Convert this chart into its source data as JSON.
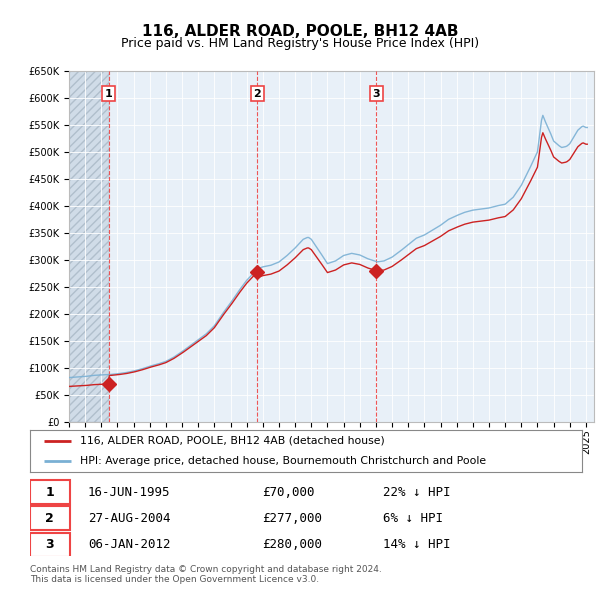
{
  "title": "116, ALDER ROAD, POOLE, BH12 4AB",
  "subtitle": "Price paid vs. HM Land Registry's House Price Index (HPI)",
  "legend_line1": "116, ALDER ROAD, POOLE, BH12 4AB (detached house)",
  "legend_line2": "HPI: Average price, detached house, Bournemouth Christchurch and Poole",
  "footer1": "Contains HM Land Registry data © Crown copyright and database right 2024.",
  "footer2": "This data is licensed under the Open Government Licence v3.0.",
  "transactions": [
    {
      "num": 1,
      "date": "16-JUN-1995",
      "price": 70000,
      "pct": "22%",
      "direction": "↓",
      "year": 1995.46
    },
    {
      "num": 2,
      "date": "27-AUG-2004",
      "price": 277000,
      "pct": "6%",
      "direction": "↓",
      "year": 2004.65
    },
    {
      "num": 3,
      "date": "06-JAN-2012",
      "price": 280000,
      "pct": "14%",
      "direction": "↓",
      "year": 2012.02
    }
  ],
  "hpi_color": "#7ab0d4",
  "price_color": "#cc2222",
  "dashed_line_color": "#ee4444",
  "background_plot": "#e8f0f8",
  "ylim": [
    0,
    650000
  ],
  "ytick_step": 50000,
  "xmin": 1993.0,
  "xmax": 2025.5,
  "hatch_end": 1995.46,
  "title_fontsize": 11,
  "subtitle_fontsize": 9,
  "tick_fontsize": 7,
  "label_fontsize": 8
}
